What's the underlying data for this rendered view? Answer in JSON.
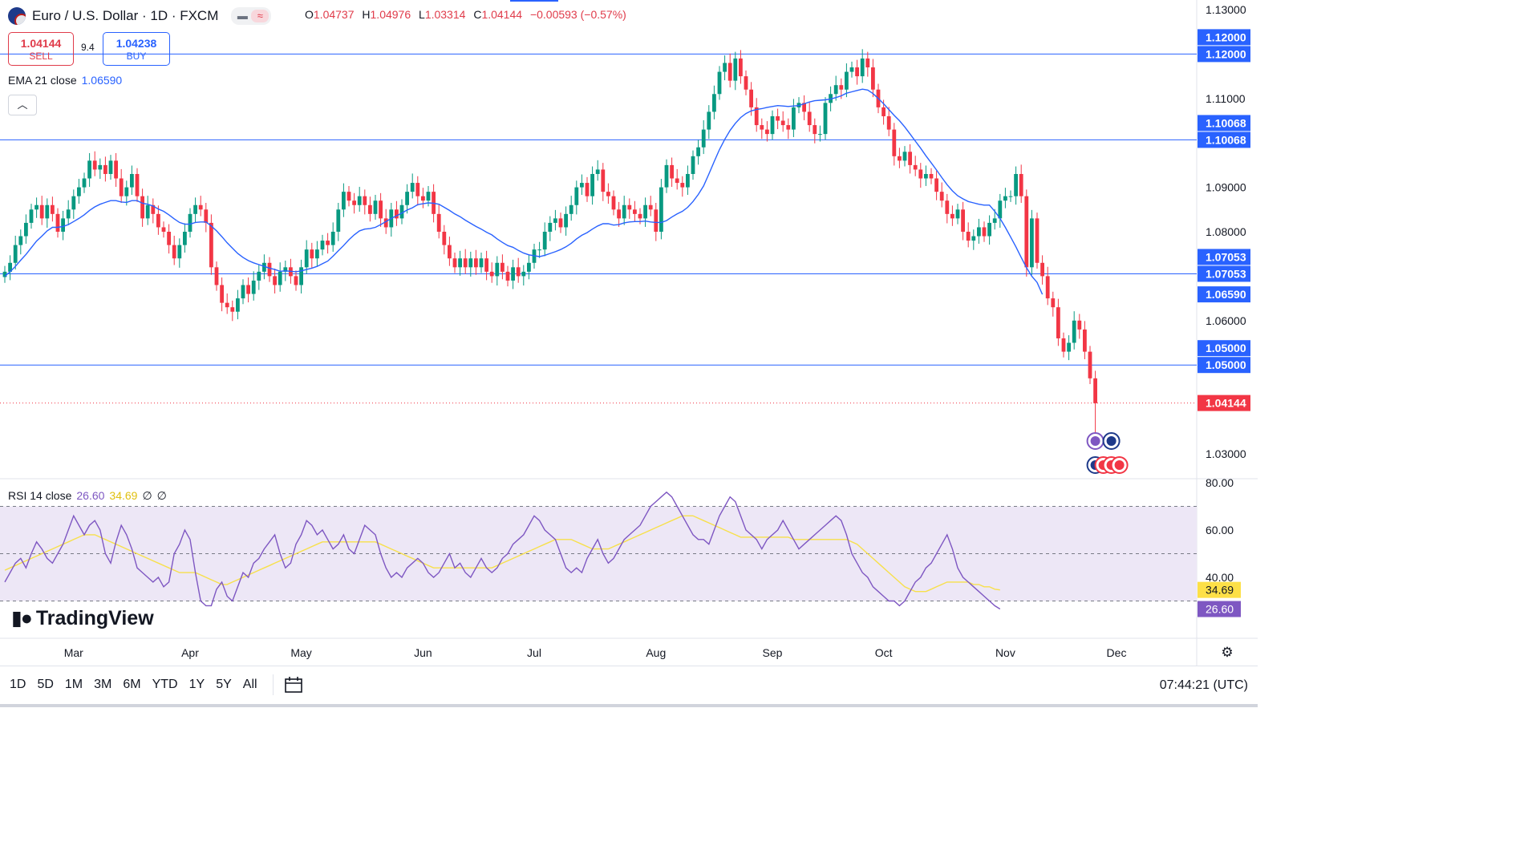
{
  "header": {
    "title": "Euro / U.S. Dollar · 1D · FXCM",
    "ohlc": [
      {
        "k": "O",
        "v": "1.04737"
      },
      {
        "k": "H",
        "v": "1.04976"
      },
      {
        "k": "L",
        "v": "1.03314"
      },
      {
        "k": "C",
        "v": "1.04144"
      }
    ],
    "change": "−0.00593 (−0.57%)"
  },
  "trade": {
    "sell_price": "1.04144",
    "sell_label": "SELL",
    "spread": "9.4",
    "buy_price": "1.04238",
    "buy_label": "BUY"
  },
  "ema": {
    "label": "EMA 21 close",
    "value": "1.06590"
  },
  "rsi": {
    "label": "RSI 14 close",
    "value": "26.60",
    "ma_value": "34.69",
    "extra1": "∅",
    "extra2": "∅"
  },
  "logo": "TradingView",
  "timeframes": [
    "1D",
    "5D",
    "1M",
    "3M",
    "6M",
    "YTD",
    "1Y",
    "5Y",
    "All"
  ],
  "clock": "07:44:21 (UTC)",
  "colors": {
    "up": "#089981",
    "down": "#f23645",
    "ema": "#2962ff",
    "rsi": "#7e57c2",
    "rsi_ma": "#f7e04b",
    "hline": "#2962ff",
    "rsi_band": "#ede7f6"
  },
  "chart_data": [
    {
      "type": "candlestick",
      "title": "Euro / U.S. Dollar · 1D · FXCM",
      "ylim": [
        1.025,
        1.131
      ],
      "yticks": [
        "1.13000",
        "1.11000",
        "1.09000",
        "1.08000",
        "1.06000",
        "1.03000"
      ],
      "xticks": [
        {
          "label": "Mar",
          "i": 13
        },
        {
          "label": "Apr",
          "i": 35
        },
        {
          "label": "May",
          "i": 56
        },
        {
          "label": "Jun",
          "i": 79
        },
        {
          "label": "Jul",
          "i": 100
        },
        {
          "label": "Aug",
          "i": 123
        },
        {
          "label": "Sep",
          "i": 145
        },
        {
          "label": "Oct",
          "i": 166
        },
        {
          "label": "Nov",
          "i": 189
        },
        {
          "label": "Dec",
          "i": 210
        }
      ],
      "hlines": [
        1.12,
        1.10068,
        1.07053,
        1.05
      ],
      "hline_labels": [
        "1.12000",
        "1.10068",
        "1.07053",
        "1.05000"
      ],
      "last_price": 1.04144,
      "last_price_label": "1.04144",
      "ema_label_value": 1.0659,
      "ema_label": "1.06590",
      "closes": [
        1.071,
        1.073,
        1.077,
        1.079,
        1.082,
        1.085,
        1.086,
        1.083,
        1.086,
        1.084,
        1.08,
        1.083,
        1.085,
        1.088,
        1.09,
        1.092,
        1.096,
        1.094,
        1.095,
        1.093,
        1.096,
        1.092,
        1.088,
        1.09,
        1.093,
        1.088,
        1.083,
        1.086,
        1.084,
        1.081,
        1.08,
        1.077,
        1.074,
        1.077,
        1.08,
        1.084,
        1.086,
        1.085,
        1.082,
        1.072,
        1.068,
        1.064,
        1.063,
        1.062,
        1.065,
        1.068,
        1.066,
        1.069,
        1.071,
        1.073,
        1.07,
        1.068,
        1.071,
        1.072,
        1.07,
        1.068,
        1.072,
        1.076,
        1.074,
        1.076,
        1.078,
        1.077,
        1.08,
        1.085,
        1.089,
        1.087,
        1.086,
        1.088,
        1.086,
        1.084,
        1.087,
        1.083,
        1.081,
        1.085,
        1.083,
        1.086,
        1.089,
        1.091,
        1.088,
        1.087,
        1.089,
        1.084,
        1.08,
        1.077,
        1.074,
        1.072,
        1.074,
        1.072,
        1.074,
        1.072,
        1.074,
        1.071,
        1.07,
        1.073,
        1.071,
        1.069,
        1.072,
        1.07,
        1.071,
        1.073,
        1.076,
        1.076,
        1.08,
        1.082,
        1.083,
        1.081,
        1.084,
        1.086,
        1.09,
        1.091,
        1.088,
        1.093,
        1.094,
        1.089,
        1.088,
        1.085,
        1.083,
        1.086,
        1.085,
        1.084,
        1.083,
        1.086,
        1.085,
        1.08,
        1.09,
        1.095,
        1.092,
        1.091,
        1.09,
        1.093,
        1.097,
        1.099,
        1.103,
        1.107,
        1.111,
        1.116,
        1.118,
        1.114,
        1.119,
        1.115,
        1.112,
        1.108,
        1.104,
        1.103,
        1.102,
        1.106,
        1.105,
        1.104,
        1.103,
        1.108,
        1.109,
        1.107,
        1.104,
        1.102,
        1.102,
        1.109,
        1.111,
        1.113,
        1.112,
        1.116,
        1.117,
        1.115,
        1.119,
        1.117,
        1.112,
        1.108,
        1.106,
        1.103,
        1.097,
        1.096,
        1.098,
        1.095,
        1.094,
        1.092,
        1.093,
        1.092,
        1.089,
        1.087,
        1.084,
        1.083,
        1.085,
        1.08,
        1.078,
        1.079,
        1.081,
        1.079,
        1.082,
        1.083,
        1.087,
        1.088,
        1.088,
        1.093,
        1.088,
        1.072,
        1.083,
        1.073,
        1.07,
        1.065,
        1.063,
        1.056,
        1.053,
        1.055,
        1.06,
        1.058,
        1.053,
        1.047,
        1.0414
      ],
      "ema": [
        1.07,
        1.071,
        1.0722,
        1.0736,
        1.0749,
        1.0764,
        1.0779,
        1.079,
        1.0802,
        1.081,
        1.081,
        1.0812,
        1.0816,
        1.0823,
        1.083,
        1.0838,
        1.0848,
        1.0856,
        1.0862,
        1.0866,
        1.087,
        1.087,
        1.0867,
        1.0866,
        1.087,
        1.087,
        1.0864,
        1.0862,
        1.0858,
        1.0851,
        1.0846,
        1.0838,
        1.0829,
        1.0821,
        1.0817,
        1.0817,
        1.0821,
        1.0822,
        1.0822,
        1.0813,
        1.0802,
        1.0789,
        1.0775,
        1.0763,
        1.0751,
        1.0742,
        1.0735,
        1.073,
        1.0726,
        1.0722,
        1.0718,
        1.0715,
        1.0711,
        1.0712,
        1.0711,
        1.071,
        1.0712,
        1.0715,
        1.0718,
        1.0722,
        1.0728,
        1.0734,
        1.0745,
        1.0757,
        1.0769,
        1.0782,
        1.0793,
        1.0802,
        1.0806,
        1.0807,
        1.081,
        1.0816,
        1.0823,
        1.083,
        1.0836,
        1.0842,
        1.0849,
        1.0854,
        1.0861,
        1.0863,
        1.0865,
        1.0864,
        1.0862,
        1.0855,
        1.0848,
        1.084,
        1.0834,
        1.0826,
        1.0819,
        1.0812,
        1.0806,
        1.0799,
        1.0793,
        1.0784,
        1.0776,
        1.0769,
        1.0765,
        1.0758,
        1.0752,
        1.0748,
        1.0746,
        1.0744,
        1.0747,
        1.0751,
        1.0755,
        1.076,
        1.0766,
        1.0774,
        1.0784,
        1.0792,
        1.0798,
        1.0806,
        1.0813,
        1.0818,
        1.0818,
        1.0815,
        1.0816,
        1.082,
        1.0822,
        1.0823,
        1.0823,
        1.0824,
        1.0822,
        1.0821,
        1.0821,
        1.0825,
        1.0833,
        1.084,
        1.0846,
        1.0855,
        1.0868,
        1.0884,
        1.0903,
        1.093,
        1.0958,
        1.0985,
        1.1008,
        1.1028,
        1.1044,
        1.1057,
        1.1066,
        1.1072,
        1.1075,
        1.1077,
        1.108,
        1.1082,
        1.1084,
        1.1083,
        1.1082,
        1.1083,
        1.1084,
        1.1088,
        1.1092,
        1.1095,
        1.1096,
        1.1097,
        1.1099,
        1.1102,
        1.1106,
        1.1112,
        1.1115,
        1.1118,
        1.1121,
        1.1119,
        1.1111,
        1.11,
        1.1088,
        1.1075,
        1.1062,
        1.105,
        1.1036,
        1.102,
        1.1004,
        1.0988,
        1.0971,
        1.0955,
        1.0939,
        1.0922,
        1.0906,
        1.0892,
        1.0881,
        1.0874,
        1.0868,
        1.0865,
        1.0862,
        1.086,
        1.086,
        1.0846,
        1.083,
        1.081,
        1.0788,
        1.0766,
        1.0742,
        1.0719,
        1.07,
        1.0686,
        1.0659
      ],
      "rsi": {
        "ylim": [
          20,
          80
        ],
        "levels": [
          70,
          50,
          30
        ],
        "yticks": [
          "80.00",
          "60.00",
          "40.00"
        ],
        "values": [
          38,
          42,
          46,
          48,
          44,
          50,
          55,
          52,
          48,
          46,
          50,
          54,
          60,
          66,
          62,
          58,
          62,
          64,
          60,
          50,
          46,
          55,
          62,
          58,
          52,
          44,
          42,
          40,
          38,
          40,
          36,
          38,
          50,
          54,
          60,
          56,
          42,
          30,
          28,
          28,
          35,
          38,
          32,
          30,
          36,
          42,
          40,
          46,
          48,
          52,
          55,
          58,
          50,
          44,
          46,
          54,
          58,
          64,
          62,
          58,
          60,
          56,
          52,
          54,
          58,
          52,
          50,
          56,
          62,
          60,
          58,
          50,
          44,
          40,
          42,
          40,
          44,
          46,
          48,
          46,
          42,
          40,
          42,
          46,
          50,
          44,
          46,
          42,
          40,
          44,
          48,
          44,
          42,
          44,
          48,
          50,
          54,
          56,
          58,
          62,
          66,
          64,
          60,
          58,
          56,
          50,
          44,
          42,
          44,
          42,
          48,
          52,
          56,
          50,
          46,
          48,
          52,
          56,
          58,
          60,
          62,
          66,
          70,
          72,
          74,
          76,
          74,
          70,
          66,
          62,
          58,
          56,
          56,
          54,
          60,
          66,
          70,
          74,
          72,
          66,
          60,
          58,
          56,
          52,
          56,
          58,
          60,
          64,
          60,
          56,
          52,
          54,
          56,
          58,
          60,
          62,
          64,
          66,
          64,
          58,
          50,
          46,
          42,
          40,
          36,
          34,
          32,
          30,
          30,
          28,
          30,
          34,
          38,
          40,
          44,
          46,
          50,
          54,
          58,
          52,
          44,
          40,
          38,
          36,
          34,
          32,
          30,
          28,
          26.6
        ],
        "ma_label": "34.69",
        "value_label": "26.60",
        "ma": [
          43,
          44,
          45,
          46,
          47,
          48,
          49,
          50,
          51,
          52,
          53,
          54,
          55,
          56,
          57,
          58,
          58,
          58,
          57,
          56,
          55,
          54,
          53,
          52,
          51,
          50,
          49,
          48,
          47,
          46,
          45,
          44,
          43,
          42,
          42,
          42,
          42,
          41,
          40,
          39,
          38,
          37,
          37,
          38,
          39,
          40,
          41,
          42,
          43,
          44,
          45,
          46,
          47,
          48,
          49,
          50,
          51,
          52,
          53,
          54,
          55,
          55,
          55,
          55,
          55,
          55,
          55,
          55,
          55,
          55,
          55,
          54,
          53,
          52,
          51,
          50,
          49,
          48,
          47,
          46,
          45,
          44,
          44,
          44,
          44,
          44,
          44,
          44,
          44,
          44,
          44,
          44,
          44,
          45,
          46,
          47,
          48,
          49,
          50,
          51,
          52,
          53,
          54,
          55,
          56,
          56,
          56,
          56,
          55,
          54,
          53,
          52,
          52,
          52,
          52,
          53,
          54,
          55,
          56,
          57,
          58,
          59,
          60,
          61,
          62,
          63,
          64,
          65,
          66,
          66,
          66,
          65,
          64,
          63,
          62,
          61,
          60,
          59,
          58,
          57,
          57,
          57,
          57,
          57,
          57,
          57,
          57,
          57,
          57,
          56,
          56,
          56,
          56,
          56,
          56,
          56,
          56,
          56,
          56,
          56,
          55,
          54,
          52,
          50,
          48,
          46,
          44,
          42,
          40,
          38,
          36,
          35,
          34,
          34,
          34,
          35,
          36,
          37,
          38,
          38,
          38,
          38,
          38,
          37,
          37,
          36,
          36,
          35,
          34.69
        ]
      }
    }
  ]
}
